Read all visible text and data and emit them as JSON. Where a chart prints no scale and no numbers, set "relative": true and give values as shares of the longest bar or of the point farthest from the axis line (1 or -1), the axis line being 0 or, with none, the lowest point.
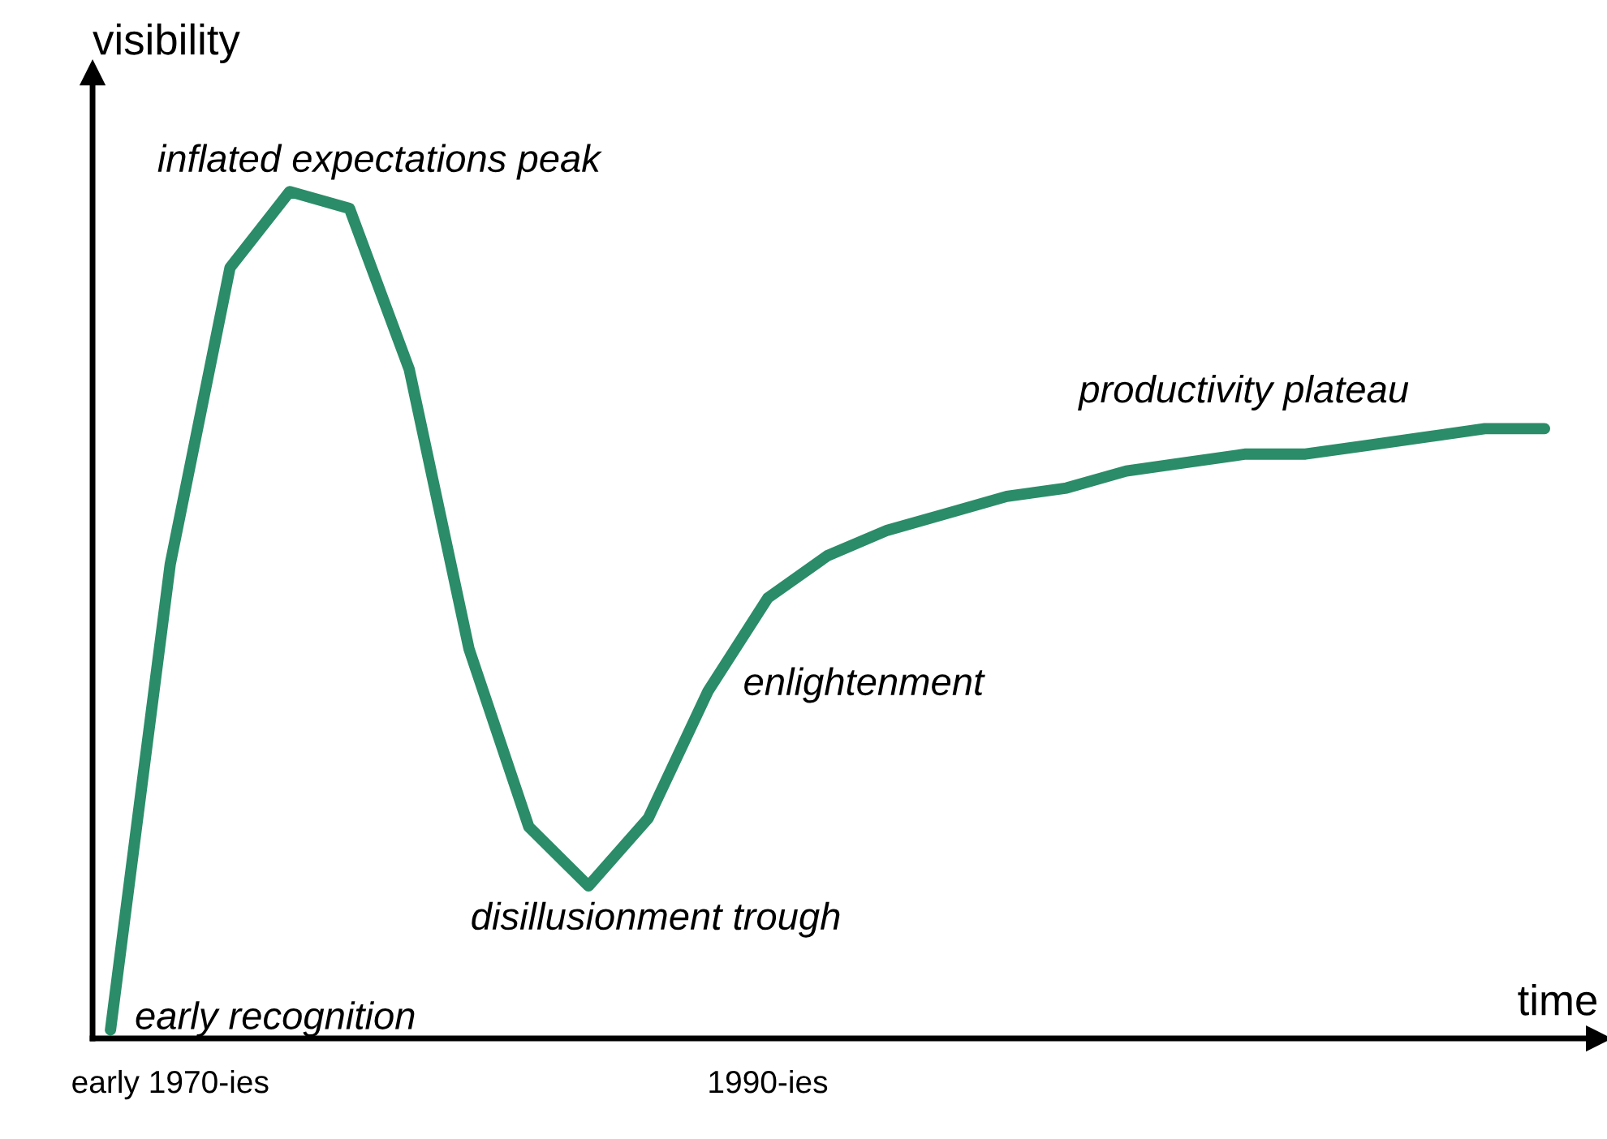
{
  "chart_data": {
    "type": "line",
    "relative": true,
    "xlabel": "time",
    "ylabel": "visibility",
    "categories": [
      null,
      "early 1970-ies",
      null,
      null,
      null,
      null,
      null,
      null,
      null,
      null,
      null,
      "1990-ies",
      null,
      null,
      null,
      null,
      null,
      null,
      null,
      null,
      null,
      null,
      null,
      null,
      null
    ],
    "series": [
      {
        "color": "#2a8c68",
        "values": [
          0.01,
          0.56,
          0.91,
          1.0,
          0.98,
          0.79,
          0.46,
          0.25,
          0.18,
          0.26,
          0.41,
          0.52,
          0.57,
          0.6,
          0.62,
          0.64,
          0.65,
          0.67,
          0.68,
          0.69,
          0.69,
          0.7,
          0.71,
          0.72,
          0.72
        ]
      }
    ],
    "annotations": [
      "inflated expectations peak",
      "early recognition",
      "disillusionment trough",
      "enlightenment",
      "productivity plateau"
    ],
    "grid": false,
    "legend": false,
    "marker": "none",
    "line_style": "solid"
  }
}
